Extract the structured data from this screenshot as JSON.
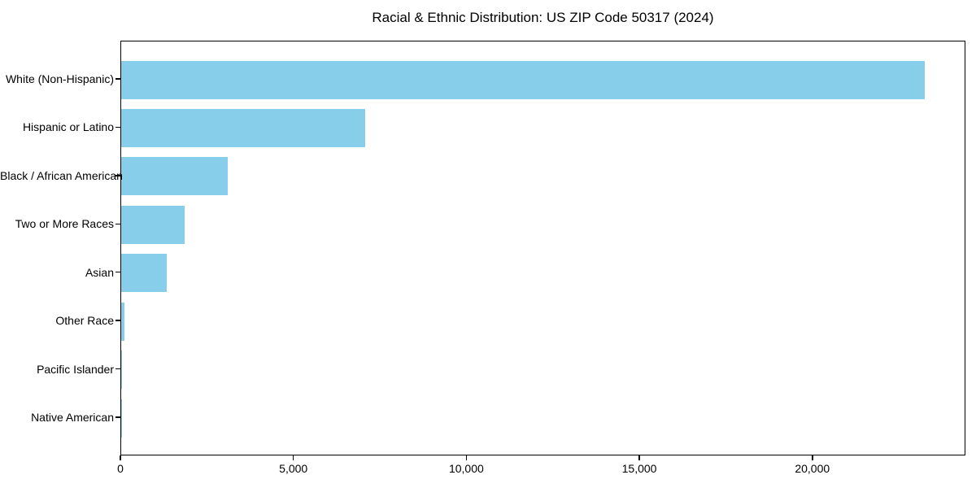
{
  "chart_data": {
    "type": "bar",
    "orientation": "horizontal",
    "title": "Racial & Ethnic Distribution: US ZIP Code 50317 (2024)",
    "categories": [
      "White (Non-Hispanic)",
      "Hispanic or Latino",
      "Black / African American",
      "Two or More Races",
      "Asian",
      "Other Race",
      "Pacific Islander",
      "Native American"
    ],
    "values": [
      23230,
      7050,
      3070,
      1830,
      1310,
      90,
      20,
      10
    ],
    "xlabel": "",
    "ylabel": "",
    "xlim": [
      0,
      24425
    ],
    "x_ticks": [
      0,
      5000,
      10000,
      15000,
      20000
    ],
    "x_tick_labels": [
      "0",
      "5,000",
      "10,000",
      "15,000",
      "20,000"
    ],
    "bar_color": "#87CEEB",
    "axis_color": "#000000",
    "background_color": "#ffffff",
    "grid": false,
    "legend": null
  }
}
